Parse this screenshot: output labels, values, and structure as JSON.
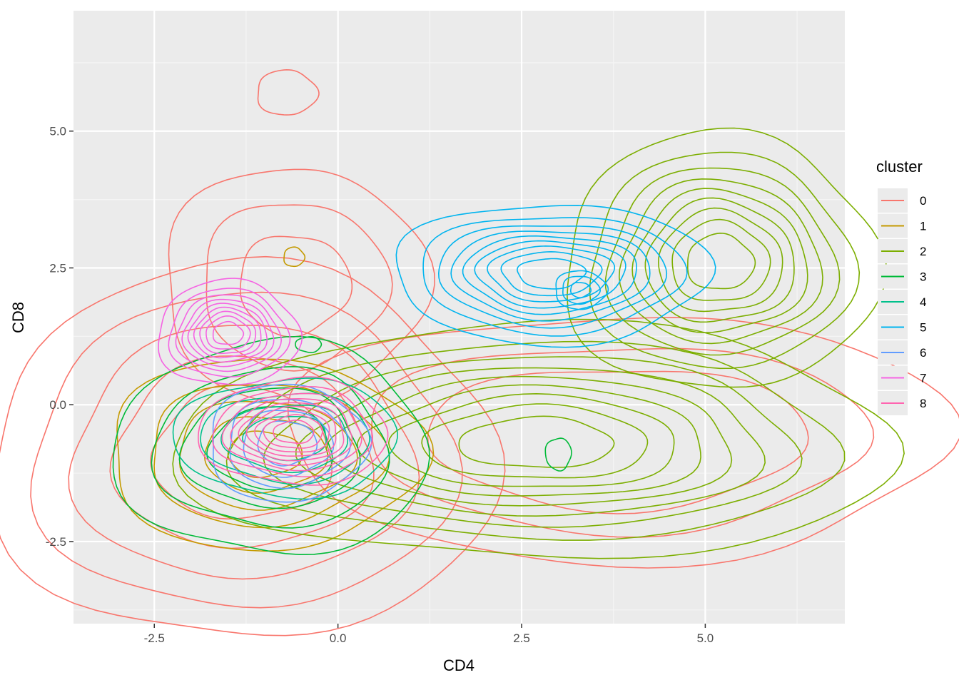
{
  "chart_data": {
    "type": "contour",
    "xlabel": "CD4",
    "ylabel": "CD8",
    "xlim": [
      -3.6,
      6.9
    ],
    "ylim": [
      -4.0,
      7.2
    ],
    "x_ticks": [
      -2.5,
      0.0,
      2.5,
      5.0
    ],
    "x_tick_labels": [
      "-2.5",
      "0.0",
      "2.5",
      "5.0"
    ],
    "y_ticks": [
      -2.5,
      0.0,
      2.5,
      5.0
    ],
    "y_tick_labels": [
      "-2.5",
      "0.0",
      "2.5",
      "5.0"
    ],
    "grid": true,
    "legend": {
      "title": "cluster",
      "position": "right",
      "entries": [
        "0",
        "1",
        "2",
        "3",
        "4",
        "5",
        "6",
        "7",
        "8"
      ]
    },
    "series": [
      {
        "name": "0",
        "color": "#F8766D",
        "peaks": [
          {
            "x": 3.8,
            "y": -0.6,
            "sx": 2.2,
            "sy": 1.1,
            "levels": [
              0.12,
              0.3,
              0.5
            ]
          },
          {
            "x": -0.6,
            "y": 2.2,
            "sx": 1.0,
            "sy": 1.2,
            "levels": [
              0.2,
              0.45,
              0.75
            ]
          },
          {
            "x": -0.7,
            "y": 5.7,
            "sx": 0.35,
            "sy": 0.35,
            "levels": [
              0.5
            ]
          },
          {
            "x": -1.3,
            "y": -0.9,
            "sx": 1.6,
            "sy": 1.6,
            "levels": [
              0.1,
              0.2,
              0.35,
              0.55,
              0.75
            ]
          }
        ]
      },
      {
        "name": "1",
        "color": "#C49A00",
        "peaks": [
          {
            "x": -1.0,
            "y": -0.9,
            "sx": 1.1,
            "sy": 0.9,
            "levels": [
              0.15,
              0.35,
              0.55,
              0.75,
              0.9
            ]
          },
          {
            "x": -0.6,
            "y": 2.7,
            "sx": 0.12,
            "sy": 0.15,
            "levels": [
              0.5
            ]
          }
        ]
      },
      {
        "name": "2",
        "color": "#7CAE00",
        "peaks": [
          {
            "x": 5.2,
            "y": 2.6,
            "sx": 1.0,
            "sy": 1.1,
            "levels": [
              0.1,
              0.2,
              0.3,
              0.4,
              0.5,
              0.6,
              0.7,
              0.8,
              0.9
            ]
          },
          {
            "x": 2.7,
            "y": -0.7,
            "sx": 2.3,
            "sy": 1.0,
            "levels": [
              0.1,
              0.2,
              0.3,
              0.4,
              0.5,
              0.6,
              0.7,
              0.8,
              0.9
            ]
          }
        ]
      },
      {
        "name": "3",
        "color": "#00BA38",
        "peaks": [
          {
            "x": -0.9,
            "y": -0.8,
            "sx": 1.1,
            "sy": 1.0,
            "levels": [
              0.15,
              0.35,
              0.55,
              0.75
            ]
          },
          {
            "x": -0.4,
            "y": 1.1,
            "sx": 0.15,
            "sy": 0.12,
            "levels": [
              0.5
            ]
          },
          {
            "x": 3.0,
            "y": -0.9,
            "sx": 0.15,
            "sy": 0.25,
            "levels": [
              0.5
            ]
          }
        ]
      },
      {
        "name": "4",
        "color": "#00C08B",
        "peaks": [
          {
            "x": -0.7,
            "y": -0.6,
            "sx": 0.85,
            "sy": 0.6,
            "levels": [
              0.2,
              0.4,
              0.6,
              0.8
            ]
          }
        ]
      },
      {
        "name": "5",
        "color": "#00B4EF",
        "peaks": [
          {
            "x": 2.9,
            "y": 2.4,
            "sx": 1.0,
            "sy": 0.6,
            "levels": [
              0.1,
              0.2,
              0.3,
              0.4,
              0.5,
              0.6,
              0.7,
              0.8,
              0.9
            ]
          },
          {
            "x": 3.3,
            "y": 2.1,
            "sx": 0.3,
            "sy": 0.3,
            "levels": [
              0.5,
              0.7,
              0.9
            ]
          }
        ]
      },
      {
        "name": "6",
        "color": "#619CFF",
        "peaks": [
          {
            "x": -0.7,
            "y": -0.7,
            "sx": 0.6,
            "sy": 0.6,
            "levels": [
              0.2,
              0.4,
              0.6,
              0.8
            ]
          }
        ]
      },
      {
        "name": "7",
        "color": "#F564E3",
        "peaks": [
          {
            "x": -1.5,
            "y": 1.3,
            "sx": 0.45,
            "sy": 0.45,
            "levels": [
              0.1,
              0.2,
              0.3,
              0.4,
              0.5,
              0.6,
              0.7,
              0.8,
              0.9
            ]
          }
        ]
      },
      {
        "name": "8",
        "color": "#FF64B0",
        "peaks": [
          {
            "x": -0.6,
            "y": -0.5,
            "sx": 0.6,
            "sy": 0.45,
            "levels": [
              0.1,
              0.2,
              0.3,
              0.4,
              0.5,
              0.6,
              0.7,
              0.8,
              0.9
            ]
          }
        ]
      }
    ]
  }
}
